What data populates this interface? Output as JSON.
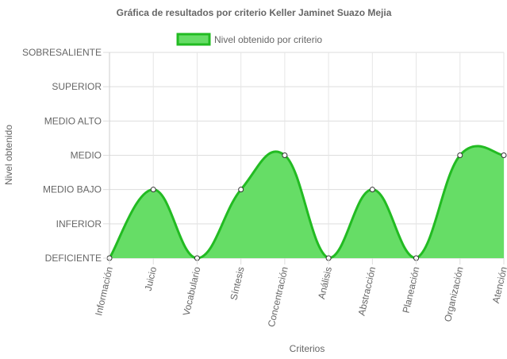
{
  "chart_data": {
    "type": "area",
    "title": "Gráfica de resultados por criterio Keller Jaminet Suazo Mejia",
    "xlabel": "Criterios",
    "ylabel": "Nivel obtenido",
    "levels": [
      "DEFICIENTE",
      "INFERIOR",
      "MEDIO BAJO",
      "MEDIO",
      "MEDIO ALTO",
      "SUPERIOR",
      "SOBRESALIENTE"
    ],
    "categories": [
      "Información",
      "Juicio",
      "Vocabulario",
      "Síntesis",
      "Concentración",
      "Análisis",
      "Abstracción",
      "Planeación",
      "Organización",
      "Atención"
    ],
    "series": [
      {
        "name": "Nivel obtenido por criterio",
        "values": [
          0,
          2,
          0,
          2,
          3,
          0,
          2,
          0,
          3,
          3
        ],
        "color": "#22bb22",
        "fill": "#66dd66"
      }
    ],
    "ylim": [
      0,
      6
    ],
    "grid": true,
    "legend": "top-center"
  }
}
